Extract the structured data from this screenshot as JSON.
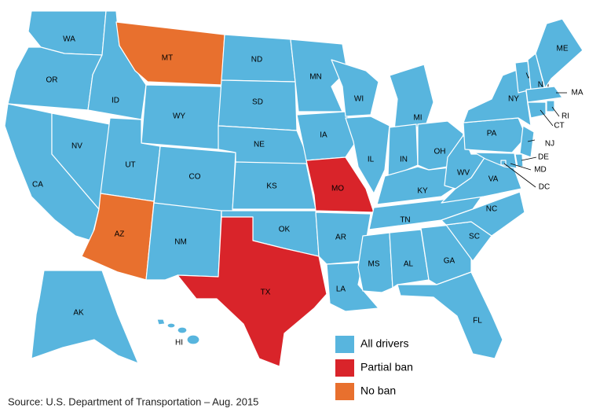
{
  "map": {
    "states": [
      {
        "label": "WA",
        "category": 0
      },
      {
        "label": "OR",
        "category": 0
      },
      {
        "label": "CA",
        "category": 0
      },
      {
        "label": "NV",
        "category": 0
      },
      {
        "label": "ID",
        "category": 0
      },
      {
        "label": "MT",
        "category": 2
      },
      {
        "label": "WY",
        "category": 0
      },
      {
        "label": "UT",
        "category": 0
      },
      {
        "label": "CO",
        "category": 0
      },
      {
        "label": "AZ",
        "category": 2
      },
      {
        "label": "NM",
        "category": 0
      },
      {
        "label": "ND",
        "category": 0
      },
      {
        "label": "SD",
        "category": 0
      },
      {
        "label": "NE",
        "category": 0
      },
      {
        "label": "KS",
        "category": 0
      },
      {
        "label": "OK",
        "category": 0
      },
      {
        "label": "TX",
        "category": 1
      },
      {
        "label": "MN",
        "category": 0
      },
      {
        "label": "IA",
        "category": 0
      },
      {
        "label": "MO",
        "category": 1
      },
      {
        "label": "AR",
        "category": 0
      },
      {
        "label": "LA",
        "category": 0
      },
      {
        "label": "WI",
        "category": 0
      },
      {
        "label": "IL",
        "category": 0
      },
      {
        "label": "MI",
        "category": 0
      },
      {
        "label": "IN",
        "category": 0
      },
      {
        "label": "OH",
        "category": 0
      },
      {
        "label": "KY",
        "category": 0
      },
      {
        "label": "TN",
        "category": 0
      },
      {
        "label": "MS",
        "category": 0
      },
      {
        "label": "AL",
        "category": 0
      },
      {
        "label": "GA",
        "category": 0
      },
      {
        "label": "FL",
        "category": 0
      },
      {
        "label": "SC",
        "category": 0
      },
      {
        "label": "NC",
        "category": 0
      },
      {
        "label": "VA",
        "category": 0
      },
      {
        "label": "WV",
        "category": 0
      },
      {
        "label": "PA",
        "category": 0
      },
      {
        "label": "NY",
        "category": 0
      },
      {
        "label": "NJ",
        "category": 0
      },
      {
        "label": "DE",
        "category": 0
      },
      {
        "label": "MD",
        "category": 0
      },
      {
        "label": "DC",
        "category": 0
      },
      {
        "label": "VT",
        "category": 0
      },
      {
        "label": "NH",
        "category": 0
      },
      {
        "label": "ME",
        "category": 0
      },
      {
        "label": "MA",
        "category": 0
      },
      {
        "label": "CT",
        "category": 0
      },
      {
        "label": "RI",
        "category": 0
      },
      {
        "label": "AK",
        "category": 0
      },
      {
        "label": "HI",
        "category": 0
      }
    ],
    "legend": [
      {
        "label": "All drivers",
        "color": "#58b5de"
      },
      {
        "label": "Partial ban",
        "color": "#d9242a"
      },
      {
        "label": "No ban",
        "color": "#e8702e"
      }
    ]
  },
  "source": "Source: U.S. Department of Transportation – Aug. 2015"
}
